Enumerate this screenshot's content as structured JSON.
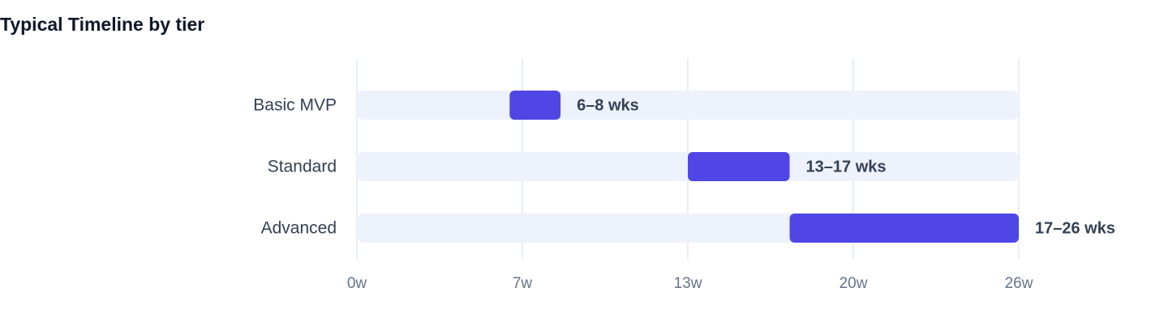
{
  "chart_data": {
    "type": "range-bar",
    "title": "Typical Timeline by tier",
    "categories": [
      "Basic MVP",
      "Standard",
      "Advanced"
    ],
    "starts": [
      6,
      13,
      17
    ],
    "ends": [
      8,
      17,
      26
    ],
    "value_labels": [
      "6–8 wks",
      "13–17 wks",
      "17–26 wks"
    ],
    "color": "#4f46e5",
    "track_color": "#eef2fd",
    "xlim": [
      0,
      26
    ],
    "xticks": [
      {
        "value": 0,
        "label": "0w"
      },
      {
        "value": 6.5,
        "label": "7w"
      },
      {
        "value": 13,
        "label": "13w"
      },
      {
        "value": 19.5,
        "label": "20w"
      },
      {
        "value": 26,
        "label": "26w"
      }
    ],
    "grid": true
  }
}
